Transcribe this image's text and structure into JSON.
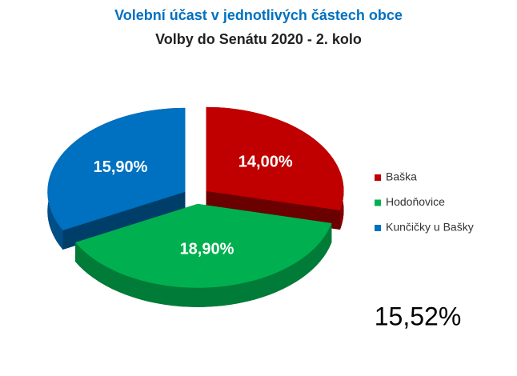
{
  "chart_data": {
    "type": "pie3d",
    "title": "Volební účast v jednotlivých částech obce",
    "subtitle": "Volby do Senátu 2020 - 2. kolo",
    "categories": [
      "Baška",
      "Hodoňovice",
      "Kunčičky u Bašky"
    ],
    "values": [
      14.0,
      18.9,
      15.9
    ],
    "value_labels": [
      "14,00%",
      "18,90%",
      "15,90%"
    ],
    "colors": [
      "#c00000",
      "#00b050",
      "#0070c0"
    ],
    "legend": "right",
    "annotation": "15,52%"
  }
}
